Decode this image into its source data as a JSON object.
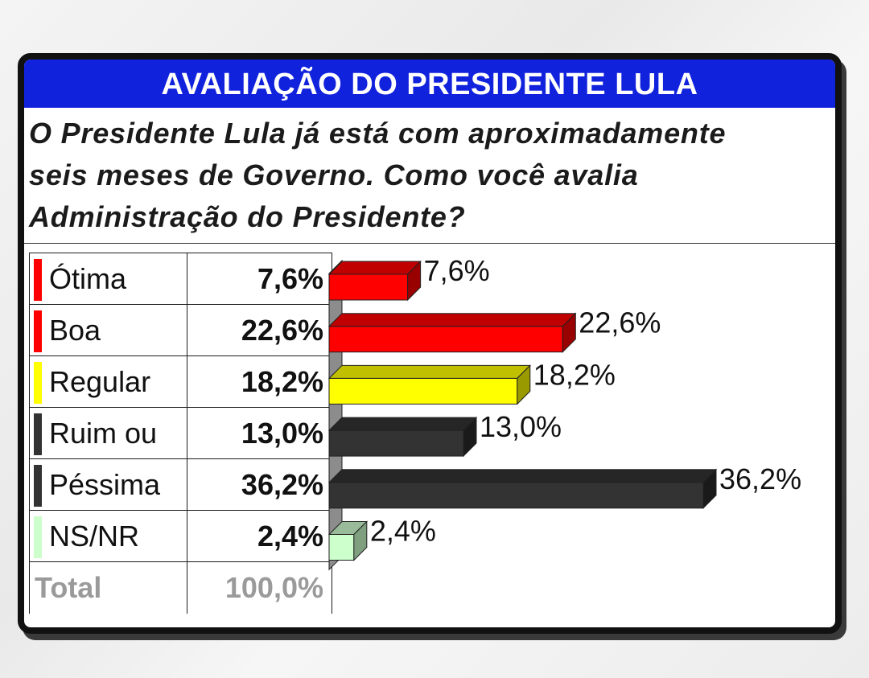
{
  "header": {
    "title": "AVALIAÇÃO DO PRESIDENTE LULA"
  },
  "question": {
    "line1": "O Presidente Lula já está com aproximadamente",
    "line2": "seis meses de Governo. Como você avalia",
    "line3": "Administração do Presidente?"
  },
  "table": {
    "rows": [
      {
        "label": "Ótima",
        "value": "7,6%",
        "color": "#ff0000"
      },
      {
        "label": "Boa",
        "value": "22,6%",
        "color": "#ff0000"
      },
      {
        "label": "Regular",
        "value": "18,2%",
        "color": "#ffff00"
      },
      {
        "label": "Ruim ou",
        "value": "13,0%",
        "color": "#333333"
      },
      {
        "label": "Péssima",
        "value": "36,2%",
        "color": "#333333"
      },
      {
        "label": "NS/NR",
        "value": "2,4%",
        "color": "#ccffcc"
      }
    ],
    "total": {
      "label": "Total",
      "value": "100,0%"
    }
  },
  "chart_data": {
    "type": "bar",
    "orientation": "horizontal",
    "categories": [
      "Ótima",
      "Boa",
      "Regular",
      "Ruim ou",
      "Péssima",
      "NS/NR"
    ],
    "values": [
      7.6,
      22.6,
      18.2,
      13.0,
      36.2,
      2.4
    ],
    "data_labels": [
      "7,6%",
      "22,6%",
      "18,2%",
      "13,0%",
      "36,2%",
      "2,4%"
    ],
    "colors": [
      "#ff0000",
      "#ff0000",
      "#ffff00",
      "#333333",
      "#333333",
      "#ccffcc"
    ],
    "top_colors": [
      "#c00000",
      "#c00000",
      "#c0c000",
      "#262626",
      "#262626",
      "#99bb99"
    ],
    "side_colors": [
      "#990000",
      "#990000",
      "#999900",
      "#1a1a1a",
      "#1a1a1a",
      "#7f9f7f"
    ],
    "xlim": [
      0,
      36.2
    ],
    "grid": false,
    "legend": "none",
    "style": "3d"
  }
}
